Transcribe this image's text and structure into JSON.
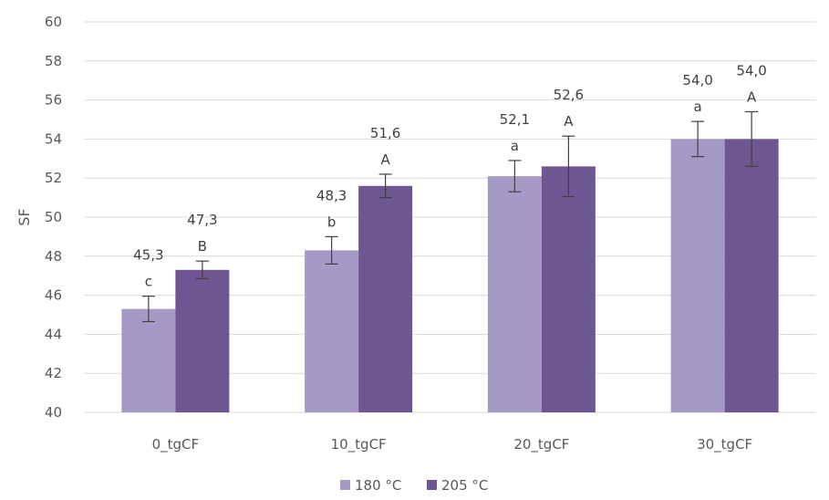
{
  "chart_data": {
    "type": "bar",
    "ylabel": "SF",
    "xlabel": "",
    "ylim": [
      40,
      60
    ],
    "yticks": [
      40,
      42,
      44,
      46,
      48,
      50,
      52,
      54,
      56,
      58,
      60
    ],
    "grid": true,
    "legend_position": "bottom",
    "categories": [
      "0_tgCF",
      "10_tgCF",
      "20_tgCF",
      "30_tgCF"
    ],
    "series": [
      {
        "name": "180 °C",
        "color": "#a59ac6",
        "values": [
          45.3,
          48.3,
          52.1,
          54.0
        ],
        "errors": [
          0.65,
          0.7,
          0.8,
          0.9
        ],
        "value_labels": [
          "45,3",
          "48,3",
          "52,1",
          "54,0"
        ],
        "letters": [
          "c",
          "b",
          "a",
          "a"
        ]
      },
      {
        "name": "205 °C",
        "color": "#6e5692",
        "values": [
          47.3,
          51.6,
          52.6,
          54.0
        ],
        "errors": [
          0.45,
          0.6,
          1.55,
          1.4
        ],
        "value_labels": [
          "47,3",
          "51,6",
          "52,6",
          "54,0"
        ],
        "letters": [
          "B",
          "A",
          "A",
          "A"
        ]
      }
    ]
  }
}
